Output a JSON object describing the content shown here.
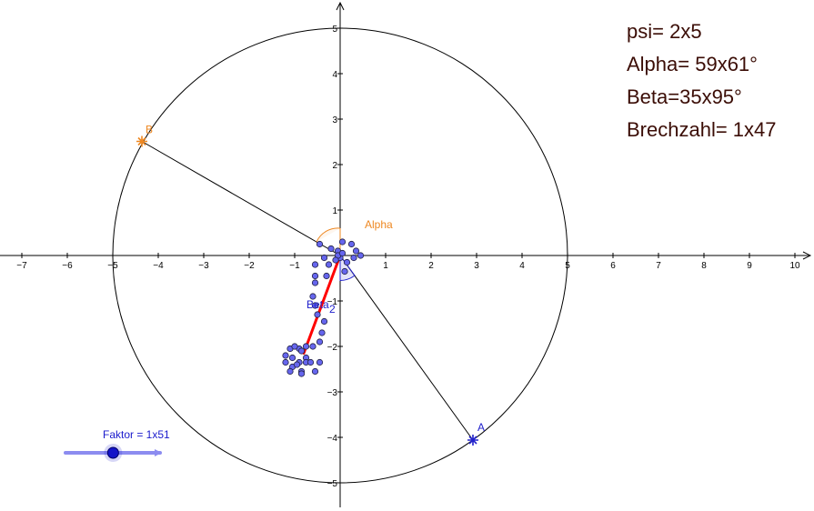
{
  "info": {
    "psi": "psi= 2x5",
    "alpha": "Alpha= 59x61°",
    "beta": "Beta=35x95°",
    "brechzahl": "Brechzahl= 1x47"
  },
  "slider": {
    "label": "Faktor = 1x51",
    "value": 1.51,
    "min": 0,
    "max": 3
  },
  "labels": {
    "A": "A",
    "B": "B",
    "alpha": "Alpha",
    "beta": "Beta",
    "sub": "2"
  },
  "colors": {
    "orange": "#ee8822",
    "blue": "#2222cc",
    "red": "#ff0000",
    "dots": "#6666ee"
  },
  "axes": {
    "x_ticks": [
      "−7",
      "−6",
      "−5",
      "−4",
      "−3",
      "−2",
      "−1",
      "1",
      "2",
      "3",
      "4",
      "5",
      "6",
      "7",
      "8",
      "9",
      "10"
    ],
    "y_ticks": [
      "5",
      "4",
      "3",
      "2",
      "1",
      "−1",
      "−2",
      "−3",
      "−4",
      "−5"
    ]
  },
  "chart_data": {
    "type": "scatter",
    "circle": {
      "center": [
        0,
        0
      ],
      "radius": 5
    },
    "points": {
      "A": [
        2.92,
        -4.06
      ],
      "B": [
        -4.36,
        2.51
      ]
    },
    "red_segment": [
      [
        0,
        0
      ],
      [
        -0.8,
        -2.15
      ]
    ],
    "dots": [
      [
        -0.45,
        0.25
      ],
      [
        -0.2,
        0.15
      ],
      [
        -0.05,
        0.1
      ],
      [
        0.05,
        0.3
      ],
      [
        0.25,
        0.25
      ],
      [
        0.35,
        0.1
      ],
      [
        0.45,
        0.0
      ],
      [
        0.3,
        -0.05
      ],
      [
        0.15,
        -0.15
      ],
      [
        0.0,
        -0.05
      ],
      [
        -0.05,
        0.0
      ],
      [
        -0.1,
        -0.1
      ],
      [
        -0.25,
        -0.2
      ],
      [
        -0.35,
        -0.05
      ],
      [
        -0.55,
        -0.2
      ],
      [
        0.1,
        -0.35
      ],
      [
        0.05,
        0.05
      ],
      [
        -0.3,
        -0.45
      ],
      [
        -0.55,
        -0.45
      ],
      [
        -0.55,
        -0.6
      ],
      [
        -0.6,
        -0.9
      ],
      [
        -0.55,
        -1.1
      ],
      [
        -0.5,
        -1.3
      ],
      [
        -0.35,
        -1.45
      ],
      [
        -0.4,
        -1.7
      ],
      [
        -0.45,
        -1.9
      ],
      [
        -0.6,
        -2.0
      ],
      [
        -0.75,
        -2.0
      ],
      [
        -0.9,
        -2.05
      ],
      [
        -1.1,
        -2.05
      ],
      [
        -1.2,
        -2.2
      ],
      [
        -1.2,
        -2.35
      ],
      [
        -1.05,
        -2.25
      ],
      [
        -1.0,
        -2.0
      ],
      [
        -0.85,
        -2.1
      ],
      [
        -0.75,
        -2.25
      ],
      [
        -0.9,
        -2.35
      ],
      [
        -1.05,
        -2.45
      ],
      [
        -1.1,
        -2.55
      ],
      [
        -0.85,
        -2.55
      ],
      [
        -0.75,
        -2.35
      ],
      [
        -0.65,
        -2.35
      ],
      [
        -0.55,
        -2.55
      ],
      [
        -0.85,
        -2.6
      ],
      [
        -0.45,
        -2.35
      ],
      [
        -0.95,
        -2.4
      ]
    ]
  }
}
